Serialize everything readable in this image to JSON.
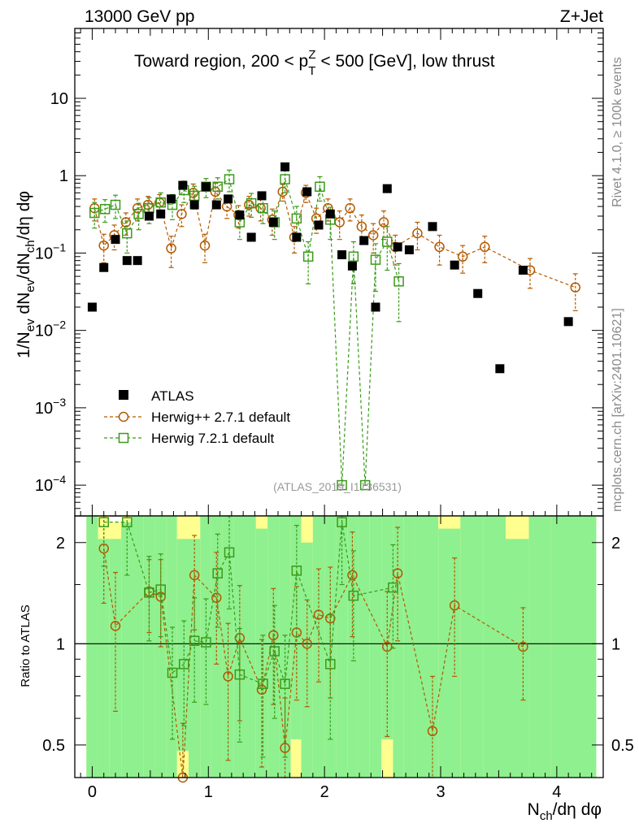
{
  "header": {
    "left": "13000 GeV pp",
    "right": "Z+Jet"
  },
  "side_labels": {
    "rivet": "Rivet 4.1.0, ≥ 100k events",
    "mcplots": "mcplots.cern.ch [arXiv:2401.10621]"
  },
  "colors": {
    "atlas": "#000000",
    "herwigpp": "#b35900",
    "herwig7": "#3a9a1a",
    "band_green": "#8ff08f",
    "band_yellow": "#ffff8f"
  },
  "chart_data": [
    {
      "type": "scatter",
      "title": "Toward region, 200 < p_T^Z < 500 [GeV], low thrust",
      "title_parts": {
        "pre": "Toward region, 200 < p",
        "sub": "T",
        "sup": "Z",
        "post": " < 500 [GeV], low thrust"
      },
      "watermark": "(ATLAS_2019_I1736531)",
      "ylabel": "1/N_ev dN_ev/dN_ch/dη dφ",
      "ylabel_parts": [
        "1/N",
        "ev",
        " dN",
        "ev",
        "/dN",
        "ch",
        "/dη dφ"
      ],
      "yscale": "log",
      "ylim": [
        4e-05,
        80
      ],
      "xlim": [
        -0.15,
        4.4
      ],
      "y_ticks": [
        {
          "value": 10,
          "label": "10"
        },
        {
          "value": 1,
          "label": "1"
        },
        {
          "value": 0.1,
          "label": "10",
          "exp": "−1"
        },
        {
          "value": 0.01,
          "label": "10",
          "exp": "−2"
        },
        {
          "value": 0.001,
          "label": "10",
          "exp": "−3"
        },
        {
          "value": 0.0001,
          "label": "10",
          "exp": "−4"
        }
      ],
      "legend": {
        "position": "lower-left",
        "entries": [
          "ATLAS",
          "Herwig++ 2.7.1 default",
          "Herwig 7.2.1 default"
        ]
      },
      "series": [
        {
          "name": "ATLAS",
          "style": "filled-square",
          "x": [
            0.0,
            0.1,
            0.2,
            0.3,
            0.39,
            0.49,
            0.59,
            0.68,
            0.78,
            0.88,
            0.98,
            1.07,
            1.17,
            1.27,
            1.37,
            1.46,
            1.56,
            1.66,
            1.76,
            1.85,
            1.95,
            2.05,
            2.15,
            2.24,
            2.34,
            2.44,
            2.54,
            2.63,
            2.73,
            2.93,
            3.12,
            3.32,
            3.51,
            3.71,
            4.1
          ],
          "y": [
            0.02,
            0.065,
            0.15,
            0.08,
            0.08,
            0.3,
            0.32,
            0.5,
            0.75,
            0.42,
            0.72,
            0.42,
            0.5,
            0.31,
            0.16,
            0.55,
            0.25,
            1.3,
            0.16,
            0.62,
            0.23,
            0.32,
            0.095,
            0.068,
            0.145,
            0.02,
            0.68,
            0.12,
            0.11,
            0.22,
            0.07,
            0.03,
            0.0032,
            0.06,
            0.013
          ]
        },
        {
          "name": "Herwig++ 2.7.1 default",
          "style": "open-circle-dashed",
          "x": [
            0.02,
            0.1,
            0.19,
            0.29,
            0.39,
            0.48,
            0.58,
            0.68,
            0.77,
            0.87,
            0.97,
            1.06,
            1.16,
            1.26,
            1.35,
            1.45,
            1.55,
            1.64,
            1.74,
            1.84,
            1.93,
            2.03,
            2.13,
            2.22,
            2.32,
            2.42,
            2.51,
            2.61,
            2.8,
            2.99,
            3.19,
            3.38,
            3.77,
            4.16
          ],
          "y": [
            0.38,
            0.125,
            0.17,
            0.25,
            0.38,
            0.42,
            0.45,
            0.115,
            0.32,
            0.6,
            0.125,
            0.62,
            0.4,
            0.31,
            0.42,
            0.38,
            0.27,
            0.62,
            0.16,
            0.6,
            0.28,
            0.38,
            0.25,
            0.38,
            0.22,
            0.17,
            0.25,
            0.12,
            0.18,
            0.12,
            0.09,
            0.12,
            0.06,
            0.036
          ],
          "y_err": [
            0.12,
            0.05,
            0.06,
            0.08,
            0.12,
            0.12,
            0.12,
            0.05,
            0.1,
            0.18,
            0.05,
            0.18,
            0.12,
            0.1,
            0.12,
            0.12,
            0.1,
            0.15,
            0.06,
            0.15,
            0.1,
            0.12,
            0.1,
            0.12,
            0.09,
            0.07,
            0.1,
            0.05,
            0.07,
            0.05,
            0.035,
            0.045,
            0.025,
            0.018
          ]
        },
        {
          "name": "Herwig 7.2.1 default",
          "style": "open-square-dashed",
          "x": [
            0.02,
            0.11,
            0.2,
            0.3,
            0.4,
            0.49,
            0.59,
            0.69,
            0.79,
            0.88,
            0.98,
            1.08,
            1.18,
            1.27,
            1.37,
            1.47,
            1.57,
            1.66,
            1.76,
            1.86,
            1.96,
            2.05,
            2.15,
            2.25,
            2.35,
            2.44,
            2.54,
            2.64
          ],
          "y": [
            0.33,
            0.37,
            0.42,
            0.18,
            0.32,
            0.38,
            0.45,
            0.42,
            0.65,
            0.55,
            0.72,
            0.72,
            0.9,
            0.25,
            0.44,
            0.38,
            0.25,
            0.9,
            0.28,
            0.09,
            0.72,
            0.27,
            0.0001,
            0.09,
            0.0001,
            0.082,
            0.14,
            0.043
          ],
          "y_err": [
            0.12,
            0.12,
            0.14,
            0.08,
            0.12,
            0.14,
            0.15,
            0.15,
            0.2,
            0.18,
            0.2,
            0.22,
            0.28,
            0.1,
            0.15,
            0.14,
            0.1,
            0.3,
            0.12,
            0.05,
            0.25,
            0.12,
            0.0,
            0.05,
            0.0,
            0.05,
            0.08,
            0.03
          ]
        }
      ]
    },
    {
      "type": "scatter",
      "ylabel": "Ratio to ATLAS",
      "xlabel": "N_ch/dη dφ",
      "xlabel_parts": [
        "N",
        "ch",
        "/dη dφ"
      ],
      "yscale": "log",
      "ylim": [
        0.4,
        2.4
      ],
      "xlim": [
        -0.15,
        4.4
      ],
      "y_ticks": [
        {
          "value": 2,
          "label": "2"
        },
        {
          "value": 1,
          "label": "1"
        },
        {
          "value": 0.5,
          "label": "0.5"
        }
      ],
      "x_ticks": [
        {
          "value": 0,
          "label": "0"
        },
        {
          "value": 1,
          "label": "1"
        },
        {
          "value": 2,
          "label": "2"
        },
        {
          "value": 3,
          "label": "3"
        },
        {
          "value": 4,
          "label": "4"
        }
      ],
      "reference_line": 1,
      "bands": {
        "x_edges": [
          -0.05,
          0.05,
          0.15,
          0.25,
          0.34,
          0.44,
          0.54,
          0.64,
          0.73,
          0.83,
          0.93,
          1.02,
          1.12,
          1.22,
          1.32,
          1.41,
          1.51,
          1.61,
          1.71,
          1.8,
          1.9,
          2.0,
          2.1,
          2.2,
          2.29,
          2.39,
          2.49,
          2.59,
          2.68,
          2.78,
          2.98,
          3.17,
          3.37,
          3.56,
          3.76,
          3.95,
          4.34
        ],
        "green_hi": [
          2.4,
          2.4,
          2.4,
          2.4,
          2.4,
          2.4,
          2.4,
          2.4,
          2.4,
          2.4,
          2.4,
          2.4,
          2.4,
          2.4,
          2.4,
          2.4,
          2.4,
          2.4,
          2.4,
          2.4,
          2.4,
          2.4,
          2.4,
          2.4,
          2.4,
          2.4,
          2.4,
          2.4,
          2.4,
          2.4,
          2.4,
          2.4,
          2.4,
          2.4,
          2.4,
          2.4
        ],
        "yellow_hi": [
          2.4,
          2.4,
          2.4,
          2.4,
          2.4,
          2.4,
          2.4,
          2.4,
          2.4,
          2.4,
          2.4,
          2.4,
          2.4,
          2.4,
          2.4,
          2.4,
          2.4,
          2.4,
          2.4,
          2.4,
          2.4,
          2.4,
          2.4,
          2.4,
          2.4,
          2.4,
          2.4,
          2.4,
          2.4,
          2.4,
          2.4,
          2.4,
          2.4,
          2.4,
          2.4,
          2.4
        ],
        "green_top": [
          2.4,
          2.05,
          2.05,
          2.3,
          2.4,
          2.4,
          2.4,
          2.4,
          2.05,
          2.05,
          2.4,
          2.4,
          2.4,
          2.4,
          2.4,
          2.2,
          2.4,
          2.4,
          2.4,
          2.0,
          2.4,
          2.4,
          2.4,
          2.4,
          2.4,
          2.4,
          2.4,
          2.4,
          2.4,
          2.4,
          2.2,
          2.4,
          2.4,
          2.05,
          2.4,
          2.4
        ],
        "yellow_top": [
          2.4,
          2.4,
          2.3,
          2.4,
          2.4,
          2.4,
          2.4,
          2.4,
          2.4,
          2.4,
          2.4,
          2.4,
          2.4,
          2.4,
          2.4,
          2.4,
          2.4,
          2.4,
          2.3,
          2.4,
          2.4,
          2.4,
          2.4,
          2.4,
          2.4,
          2.4,
          2.4,
          2.4,
          2.4,
          2.4,
          2.4,
          2.4,
          2.4,
          2.4,
          2.4,
          2.4
        ],
        "green_bottom": [
          0.4,
          0.4,
          0.4,
          0.4,
          0.4,
          0.4,
          0.4,
          0.4,
          0.4,
          0.4,
          0.4,
          0.4,
          0.4,
          0.4,
          0.4,
          0.4,
          0.4,
          0.4,
          0.4,
          0.4,
          0.4,
          0.4,
          0.4,
          0.4,
          0.4,
          0.4,
          0.4,
          0.4,
          0.4,
          0.4,
          0.4,
          0.4,
          0.4,
          0.4,
          0.4,
          0.4
        ],
        "yellow_bottom_hi": [
          0.4,
          0.4,
          0.4,
          0.4,
          0.4,
          0.4,
          0.4,
          0.4,
          0.48,
          0.4,
          0.4,
          0.4,
          0.4,
          0.4,
          0.4,
          0.4,
          0.4,
          0.4,
          0.52,
          0.4,
          0.4,
          0.4,
          0.4,
          0.4,
          0.4,
          0.4,
          0.52,
          0.4,
          0.4,
          0.4,
          0.4,
          0.4,
          0.4,
          0.4,
          0.4,
          0.4
        ]
      },
      "series": [
        {
          "name": "Herwig++ 2.7.1 default / ATLAS",
          "x": [
            0.1,
            0.2,
            0.49,
            0.59,
            0.78,
            0.88,
            1.07,
            1.17,
            1.27,
            1.46,
            1.56,
            1.66,
            1.76,
            1.85,
            1.95,
            2.05,
            2.24,
            2.54,
            2.63,
            2.93,
            3.12,
            3.71
          ],
          "y": [
            1.92,
            1.13,
            1.43,
            1.38,
            0.38,
            1.6,
            1.37,
            0.8,
            1.04,
            0.73,
            1.06,
            0.49,
            1.08,
            1.0,
            1.22,
            1.19,
            1.6,
            0.98,
            1.62,
            0.55,
            1.3,
            0.98
          ],
          "y_err": [
            0.6,
            0.5,
            0.35,
            0.4,
            0.2,
            0.5,
            0.5,
            0.35,
            0.45,
            0.3,
            0.4,
            0.2,
            0.4,
            0.35,
            0.45,
            0.5,
            0.55,
            0.45,
            0.6,
            0.25,
            0.5,
            0.3
          ]
        },
        {
          "name": "Herwig 7.2.1 default / ATLAS",
          "x": [
            0.1,
            0.3,
            0.49,
            0.59,
            0.69,
            0.79,
            0.88,
            0.98,
            1.08,
            1.18,
            1.27,
            1.47,
            1.57,
            1.66,
            1.76,
            2.05,
            2.15,
            2.25,
            2.59
          ],
          "y": [
            2.3,
            2.3,
            1.42,
            1.45,
            0.82,
            0.87,
            1.02,
            1.01,
            1.62,
            1.87,
            0.81,
            0.76,
            0.95,
            0.76,
            1.65,
            0.87,
            2.3,
            1.39,
            1.47
          ],
          "y_err": [
            0.6,
            0.7,
            0.4,
            0.4,
            0.3,
            0.3,
            0.35,
            0.35,
            0.5,
            0.6,
            0.3,
            0.3,
            0.35,
            0.3,
            0.6,
            0.35,
            0.8,
            0.5,
            0.5
          ]
        }
      ]
    }
  ]
}
